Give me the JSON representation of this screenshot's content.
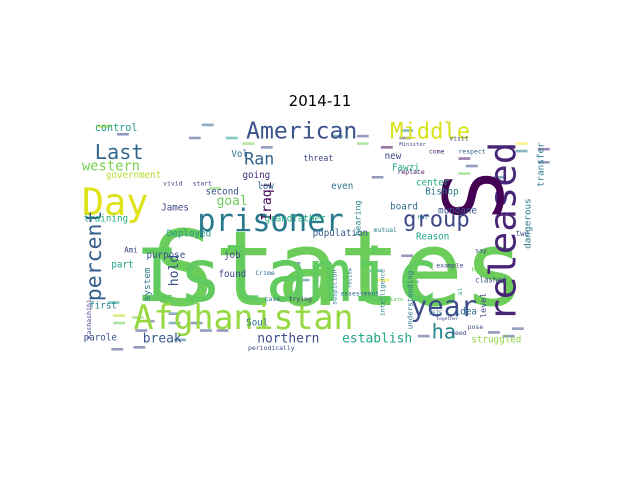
{
  "chart_data": {
    "type": "wordcloud",
    "title": "2014-11",
    "background": "#ffffff",
    "colormap": "viridis",
    "words": [
      {
        "text": "States"
      },
      {
        "text": "Islamic"
      },
      {
        "text": "Afghanistan"
      },
      {
        "text": "prisoner"
      },
      {
        "text": "released"
      },
      {
        "text": "Day"
      },
      {
        "text": "American"
      },
      {
        "text": "Middle"
      },
      {
        "text": "S"
      },
      {
        "text": "year"
      },
      {
        "text": "group"
      },
      {
        "text": "percent"
      },
      {
        "text": "Last"
      },
      {
        "text": "ha"
      },
      {
        "text": "western"
      },
      {
        "text": "Ran"
      },
      {
        "text": "northern"
      },
      {
        "text": "establish"
      },
      {
        "text": "break"
      },
      {
        "text": "hold"
      },
      {
        "text": "goal"
      },
      {
        "text": "Iraqi"
      },
      {
        "text": "government"
      },
      {
        "text": "control"
      },
      {
        "text": "training"
      },
      {
        "text": "Deployed"
      },
      {
        "text": "Vol"
      },
      {
        "text": "second"
      },
      {
        "text": "going"
      },
      {
        "text": "low"
      },
      {
        "text": "even"
      },
      {
        "text": "new"
      },
      {
        "text": "Fawzi"
      },
      {
        "text": "center"
      },
      {
        "text": "Bishop"
      },
      {
        "text": "board"
      },
      {
        "text": "mundane"
      },
      {
        "text": "population"
      },
      {
        "text": "Reason"
      },
      {
        "text": "grandfather"
      },
      {
        "text": "James"
      },
      {
        "text": "purpose"
      },
      {
        "text": "first"
      },
      {
        "text": "part"
      },
      {
        "text": "parole"
      },
      {
        "text": "Soul"
      },
      {
        "text": "struggled"
      },
      {
        "text": "idea"
      },
      {
        "text": "level"
      },
      {
        "text": "dangerous"
      },
      {
        "text": "transfer"
      },
      {
        "text": "system"
      },
      {
        "text": "found"
      },
      {
        "text": "job"
      },
      {
        "text": "Ami"
      },
      {
        "text": "Crime"
      },
      {
        "text": "threat"
      },
      {
        "text": "hearing"
      },
      {
        "text": "mutual"
      },
      {
        "text": "replace"
      },
      {
        "text": "come"
      },
      {
        "text": "respect"
      },
      {
        "text": "visit"
      },
      {
        "text": "clashed"
      },
      {
        "text": "two"
      },
      {
        "text": "example"
      },
      {
        "text": "understanding"
      },
      {
        "text": "intelligence"
      },
      {
        "text": "assessment"
      },
      {
        "text": "periodically"
      },
      {
        "text": "trying"
      },
      {
        "text": "suspicion"
      },
      {
        "text": "review"
      },
      {
        "text": "Kashashibi"
      },
      {
        "text": "case"
      },
      {
        "text": "say"
      },
      {
        "text": "need"
      },
      {
        "text": "pose"
      },
      {
        "text": "know"
      },
      {
        "text": "start"
      },
      {
        "text": "vivid"
      },
      {
        "text": "Minister"
      },
      {
        "text": "ISIS"
      },
      {
        "text": "immediate"
      },
      {
        "text": "together"
      },
      {
        "text": "al"
      },
      {
        "text": "Hat"
      }
    ]
  }
}
